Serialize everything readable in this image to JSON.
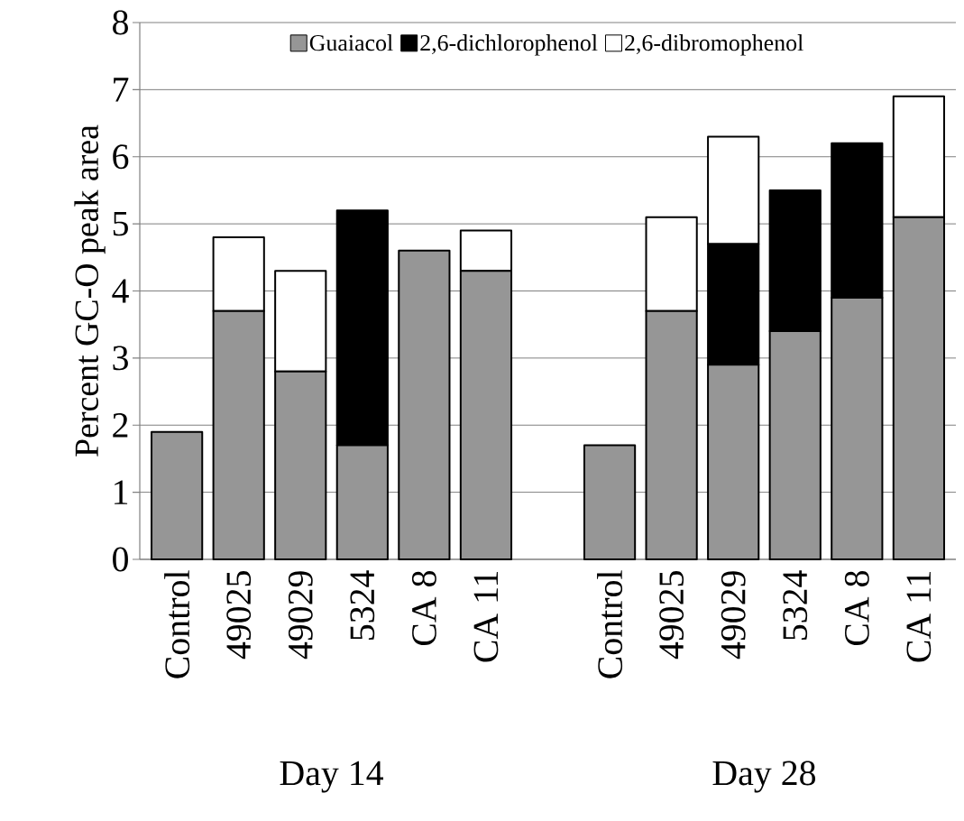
{
  "chart_data": {
    "type": "bar",
    "stacked": true,
    "ylabel": "Percent GC-O peak area",
    "categories": [
      "Control",
      "49025",
      "49029",
      "5324",
      "CA 8",
      "CA 11",
      null,
      "Control",
      "49025",
      "49029",
      "5324",
      "CA 8",
      "CA 11"
    ],
    "series": [
      {
        "name": "Guaiacol",
        "color": "#969696",
        "values": [
          1.9,
          3.7,
          2.8,
          1.7,
          4.6,
          4.3,
          null,
          1.7,
          3.7,
          2.9,
          3.4,
          3.9,
          5.1
        ]
      },
      {
        "name": "2,6-dichlorophenol",
        "color": "#000000",
        "values": [
          0,
          0,
          0,
          3.5,
          0,
          0,
          null,
          0,
          0,
          1.8,
          2.1,
          2.3,
          0
        ]
      },
      {
        "name": "2,6-dibromophenol",
        "color": "#ffffff",
        "values": [
          0,
          1.1,
          1.5,
          0,
          0,
          0.6,
          null,
          0,
          1.4,
          1.6,
          0,
          0,
          1.8
        ]
      }
    ],
    "ylim": [
      0,
      8
    ],
    "yticks": [
      0,
      1,
      2,
      3,
      4,
      5,
      6,
      7,
      8
    ],
    "grid": "y",
    "legend": "top",
    "annotations": [
      "Day 14",
      "Day 28"
    ]
  }
}
